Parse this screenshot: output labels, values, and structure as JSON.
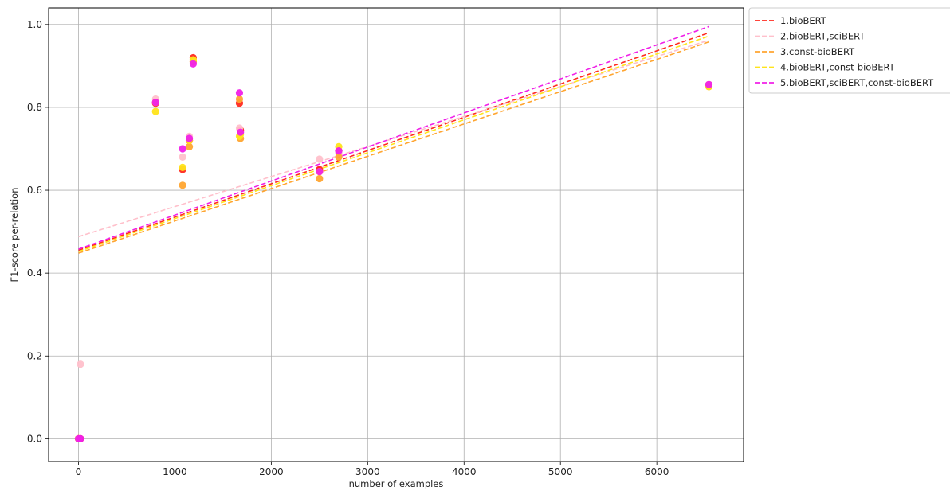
{
  "chart_data": {
    "type": "scatter",
    "title": "",
    "xlabel": "number of examples",
    "ylabel": "F1-score per-relation",
    "xlim": [
      -310,
      6900
    ],
    "ylim": [
      -0.055,
      1.04
    ],
    "xticks": [
      0,
      1000,
      2000,
      3000,
      4000,
      5000,
      6000
    ],
    "yticks": [
      0.0,
      0.2,
      0.4,
      0.6,
      0.8,
      1.0
    ],
    "xtick_labels": [
      "0",
      "1000",
      "2000",
      "3000",
      "4000",
      "5000",
      "6000"
    ],
    "ytick_labels": [
      "0.0",
      "0.2",
      "0.4",
      "0.6",
      "0.8",
      "1.0"
    ],
    "grid": true,
    "legend_position": "outside-top-right",
    "series": [
      {
        "name": "1.bioBERT",
        "color": "#ff2a1f",
        "trend": [
          [
            0,
            0.455
          ],
          [
            6540,
            0.98
          ]
        ],
        "points": [
          [
            0,
            0.0
          ],
          [
            20,
            0.0
          ],
          [
            800,
            0.81
          ],
          [
            1080,
            0.65
          ],
          [
            1150,
            0.72
          ],
          [
            1190,
            0.92
          ],
          [
            1670,
            0.81
          ],
          [
            1680,
            0.745
          ],
          [
            2500,
            0.65
          ],
          [
            2700,
            0.695
          ],
          [
            6540,
            0.855
          ]
        ]
      },
      {
        "name": "2.bioBERT,sciBERT",
        "color": "#ffc0cb",
        "trend": [
          [
            0,
            0.488
          ],
          [
            6540,
            0.962
          ]
        ],
        "points": [
          [
            20,
            0.18
          ],
          [
            800,
            0.82
          ],
          [
            1080,
            0.68
          ],
          [
            1150,
            0.73
          ],
          [
            1190,
            0.91
          ],
          [
            1670,
            0.75
          ],
          [
            2500,
            0.675
          ],
          [
            2700,
            0.69
          ],
          [
            6540,
            0.855
          ]
        ]
      },
      {
        "name": "3.const-bioBERT",
        "color": "#ffa530",
        "trend": [
          [
            0,
            0.448
          ],
          [
            6540,
            0.958
          ]
        ],
        "points": [
          [
            0,
            0.0
          ],
          [
            800,
            0.812
          ],
          [
            1080,
            0.612
          ],
          [
            1150,
            0.705
          ],
          [
            1190,
            0.91
          ],
          [
            1670,
            0.82
          ],
          [
            1680,
            0.725
          ],
          [
            2500,
            0.628
          ],
          [
            2700,
            0.68
          ],
          [
            6540,
            0.85
          ]
        ]
      },
      {
        "name": "4.bioBERT,const-bioBERT",
        "color": "#ffe41a",
        "trend": [
          [
            0,
            0.452
          ],
          [
            6540,
            0.972
          ]
        ],
        "points": [
          [
            0,
            0.0
          ],
          [
            800,
            0.79
          ],
          [
            1080,
            0.655
          ],
          [
            1150,
            0.72
          ],
          [
            1190,
            0.915
          ],
          [
            1670,
            0.73
          ],
          [
            1680,
            0.735
          ],
          [
            2500,
            0.645
          ],
          [
            2700,
            0.705
          ],
          [
            6540,
            0.85
          ]
        ]
      },
      {
        "name": "5.bioBERT,sciBERT,const-bioBERT",
        "color": "#f020e8",
        "trend": [
          [
            0,
            0.458
          ],
          [
            6540,
            0.995
          ]
        ],
        "points": [
          [
            0,
            0.0
          ],
          [
            20,
            0.0
          ],
          [
            800,
            0.812
          ],
          [
            1080,
            0.7
          ],
          [
            1150,
            0.725
          ],
          [
            1190,
            0.905
          ],
          [
            1670,
            0.835
          ],
          [
            1680,
            0.74
          ],
          [
            2500,
            0.645
          ],
          [
            2700,
            0.695
          ],
          [
            6540,
            0.855
          ]
        ]
      }
    ]
  }
}
